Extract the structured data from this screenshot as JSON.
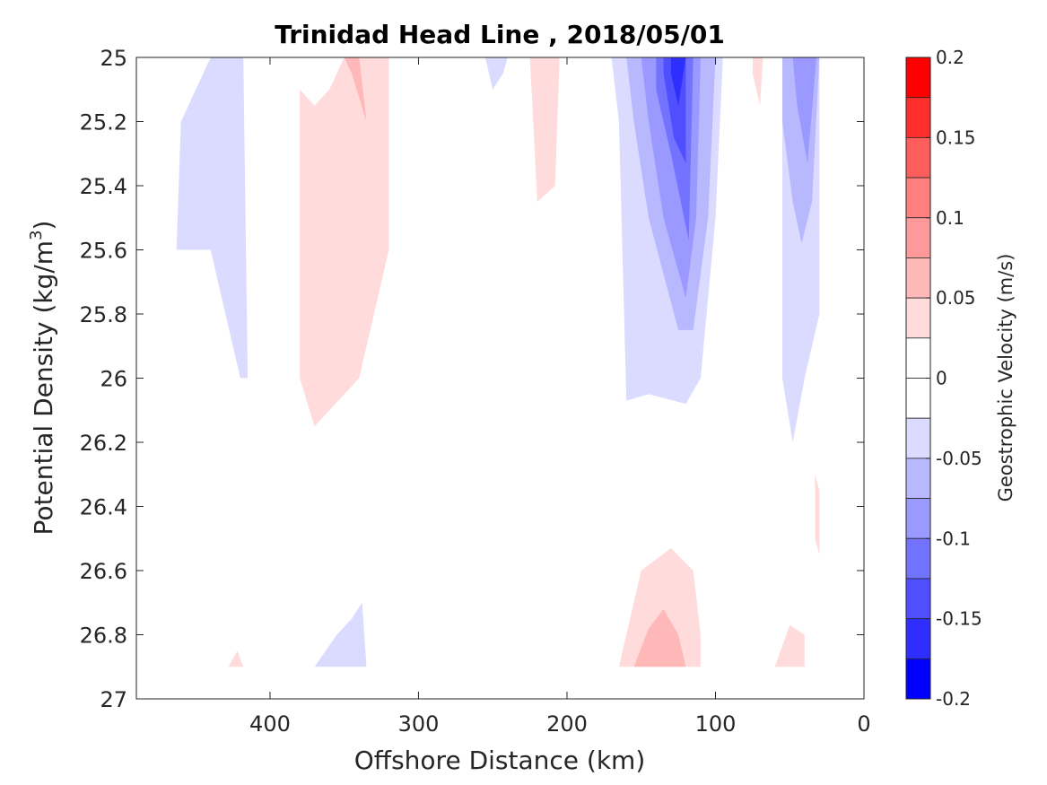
{
  "chart_data": {
    "type": "contour",
    "title": "Trinidad Head Line , 2018/05/01",
    "xlabel": "Offshore Distance (km)",
    "ylabel_main": "Potential Density (kg/m",
    "ylabel_sup": "3",
    "ylabel_close": ")",
    "xlim": [
      490,
      0
    ],
    "ylim": [
      25,
      27
    ],
    "xticks": [
      400,
      300,
      200,
      100,
      0
    ],
    "yticks": [
      25,
      25.2,
      25.4,
      25.6,
      25.8,
      26,
      26.2,
      26.4,
      26.6,
      26.8,
      27
    ],
    "grid": false,
    "colorbar": {
      "label": "Geostrophic Velocity (m/s)",
      "range": [
        -0.2,
        0.2
      ],
      "ticks": [
        0.2,
        0.15,
        0.1,
        0.05,
        0,
        -0.05,
        -0.1,
        -0.15,
        -0.2
      ],
      "levels": [
        {
          "from": 0.175,
          "to": 0.2,
          "color": "#ff0000"
        },
        {
          "from": 0.15,
          "to": 0.175,
          "color": "#ff2e2e"
        },
        {
          "from": 0.125,
          "to": 0.15,
          "color": "#ff5c5c"
        },
        {
          "from": 0.1,
          "to": 0.125,
          "color": "#ff7f7f"
        },
        {
          "from": 0.075,
          "to": 0.1,
          "color": "#ff9999"
        },
        {
          "from": 0.05,
          "to": 0.075,
          "color": "#ffb8b8"
        },
        {
          "from": 0.025,
          "to": 0.05,
          "color": "#ffdbdb"
        },
        {
          "from": 0.0,
          "to": 0.025,
          "color": "#ffffff"
        },
        {
          "from": -0.025,
          "to": 0.0,
          "color": "#ffffff"
        },
        {
          "from": -0.05,
          "to": -0.025,
          "color": "#dbdbff"
        },
        {
          "from": -0.075,
          "to": -0.05,
          "color": "#b8b8ff"
        },
        {
          "from": -0.1,
          "to": -0.075,
          "color": "#9999ff"
        },
        {
          "from": -0.125,
          "to": -0.1,
          "color": "#7373ff"
        },
        {
          "from": -0.15,
          "to": -0.125,
          "color": "#4f4fff"
        },
        {
          "from": -0.175,
          "to": -0.15,
          "color": "#2e2eff"
        },
        {
          "from": -0.2,
          "to": -0.175,
          "color": "#0000ff"
        }
      ]
    },
    "regions": [
      {
        "name": "neg-offshore-465km",
        "level": -0.05,
        "color": "#dbdbff",
        "points": [
          [
            440,
            25
          ],
          [
            460,
            25.2
          ],
          [
            463,
            25.6
          ],
          [
            455,
            25.6
          ],
          [
            440,
            25.6
          ],
          [
            430,
            25.8
          ],
          [
            420,
            26
          ],
          [
            415,
            26
          ],
          [
            418,
            25
          ],
          [
            440,
            25
          ]
        ]
      },
      {
        "name": "pos-380km",
        "level": 0.05,
        "color": "#ffdbdb",
        "points": [
          [
            380,
            25.1
          ],
          [
            370,
            25.15
          ],
          [
            360,
            25.1
          ],
          [
            350,
            25
          ],
          [
            320,
            25
          ],
          [
            320,
            25.6
          ],
          [
            340,
            26
          ],
          [
            370,
            26.15
          ],
          [
            380,
            26
          ],
          [
            380,
            25.1
          ]
        ]
      },
      {
        "name": "pos-350km-core",
        "level": 0.075,
        "color": "#ffb8b8",
        "points": [
          [
            350,
            25
          ],
          [
            340,
            25
          ],
          [
            335,
            25.2
          ],
          [
            345,
            25.05
          ],
          [
            350,
            25
          ]
        ]
      },
      {
        "name": "neg-245km",
        "level": -0.05,
        "color": "#dbdbff",
        "points": [
          [
            255,
            25
          ],
          [
            240,
            25
          ],
          [
            243,
            25.05
          ],
          [
            250,
            25.1
          ],
          [
            255,
            25
          ]
        ]
      },
      {
        "name": "pos-215km",
        "level": 0.05,
        "color": "#ffdbdb",
        "points": [
          [
            225,
            25
          ],
          [
            205,
            25
          ],
          [
            208,
            25.4
          ],
          [
            220,
            25.45
          ],
          [
            225,
            25
          ]
        ]
      },
      {
        "name": "neg-130km-l1",
        "level": -0.05,
        "color": "#dbdbff",
        "points": [
          [
            170,
            25
          ],
          [
            95,
            25
          ],
          [
            100,
            25.5
          ],
          [
            110,
            26
          ],
          [
            120,
            26.08
          ],
          [
            145,
            26.05
          ],
          [
            160,
            26.07
          ],
          [
            165,
            25.2
          ],
          [
            170,
            25
          ]
        ]
      },
      {
        "name": "neg-130km-l2",
        "level": -0.075,
        "color": "#b8b8ff",
        "points": [
          [
            160,
            25
          ],
          [
            100,
            25
          ],
          [
            105,
            25.5
          ],
          [
            115,
            25.85
          ],
          [
            125,
            25.85
          ],
          [
            145,
            25.5
          ],
          [
            155,
            25.2
          ],
          [
            160,
            25
          ]
        ]
      },
      {
        "name": "neg-130km-l3",
        "level": -0.1,
        "color": "#9999ff",
        "points": [
          [
            150,
            25
          ],
          [
            110,
            25
          ],
          [
            113,
            25.5
          ],
          [
            120,
            25.75
          ],
          [
            135,
            25.5
          ],
          [
            145,
            25.2
          ],
          [
            150,
            25
          ]
        ]
      },
      {
        "name": "neg-130km-l4",
        "level": -0.125,
        "color": "#7373ff",
        "points": [
          [
            140,
            25
          ],
          [
            115,
            25
          ],
          [
            118,
            25.57
          ],
          [
            130,
            25.3
          ],
          [
            140,
            25.1
          ],
          [
            140,
            25
          ]
        ]
      },
      {
        "name": "neg-130km-l5",
        "level": -0.15,
        "color": "#4f4fff",
        "points": [
          [
            135,
            25
          ],
          [
            120,
            25
          ],
          [
            120,
            25.33
          ],
          [
            128,
            25.25
          ],
          [
            135,
            25.05
          ],
          [
            135,
            25
          ]
        ]
      },
      {
        "name": "neg-130km-l6",
        "level": -0.175,
        "color": "#2e2eff",
        "points": [
          [
            130,
            25
          ],
          [
            120,
            25
          ],
          [
            125,
            25.15
          ],
          [
            130,
            25.05
          ],
          [
            130,
            25
          ]
        ]
      },
      {
        "name": "pos-75km",
        "level": 0.05,
        "color": "#ffdbdb",
        "points": [
          [
            75,
            25
          ],
          [
            68,
            25
          ],
          [
            70,
            25.15
          ],
          [
            75,
            25.05
          ],
          [
            75,
            25
          ]
        ]
      },
      {
        "name": "neg-50km-l1",
        "level": -0.05,
        "color": "#dbdbff",
        "points": [
          [
            55,
            25
          ],
          [
            30,
            25
          ],
          [
            30,
            25.8
          ],
          [
            40,
            26
          ],
          [
            48,
            26.2
          ],
          [
            55,
            26
          ],
          [
            55,
            25
          ]
        ]
      },
      {
        "name": "neg-50km-l2",
        "level": -0.075,
        "color": "#b8b8ff",
        "points": [
          [
            55,
            25
          ],
          [
            30,
            25
          ],
          [
            35,
            25.45
          ],
          [
            42,
            25.58
          ],
          [
            48,
            25.45
          ],
          [
            55,
            25.2
          ],
          [
            55,
            25
          ]
        ]
      },
      {
        "name": "neg-50km-l3",
        "level": -0.1,
        "color": "#9999ff",
        "points": [
          [
            48,
            25
          ],
          [
            32,
            25
          ],
          [
            38,
            25.33
          ],
          [
            45,
            25.15
          ],
          [
            48,
            25
          ]
        ]
      },
      {
        "name": "pos-30km-deep",
        "level": 0.05,
        "color": "#ffdbdb",
        "points": [
          [
            33,
            26.3
          ],
          [
            30,
            26.35
          ],
          [
            30,
            26.55
          ],
          [
            33,
            26.5
          ],
          [
            33,
            26.3
          ]
        ]
      },
      {
        "name": "neg-350km-deep",
        "level": -0.05,
        "color": "#dbdbff",
        "points": [
          [
            370,
            26.9
          ],
          [
            335,
            26.9
          ],
          [
            338,
            26.7
          ],
          [
            345,
            26.75
          ],
          [
            355,
            26.8
          ],
          [
            370,
            26.9
          ]
        ]
      },
      {
        "name": "pos-425km-deep",
        "level": 0.05,
        "color": "#ffdbdb",
        "points": [
          [
            428,
            26.9
          ],
          [
            418,
            26.9
          ],
          [
            422,
            26.85
          ],
          [
            428,
            26.9
          ]
        ]
      },
      {
        "name": "pos-130km-deep-l1",
        "level": 0.05,
        "color": "#ffdbdb",
        "points": [
          [
            165,
            26.9
          ],
          [
            110,
            26.9
          ],
          [
            110,
            26.8
          ],
          [
            115,
            26.6
          ],
          [
            130,
            26.53
          ],
          [
            150,
            26.6
          ],
          [
            165,
            26.9
          ]
        ]
      },
      {
        "name": "pos-130km-deep-l2",
        "level": 0.075,
        "color": "#ffb8b8",
        "points": [
          [
            155,
            26.9
          ],
          [
            120,
            26.9
          ],
          [
            125,
            26.8
          ],
          [
            135,
            26.72
          ],
          [
            145,
            26.78
          ],
          [
            155,
            26.9
          ]
        ]
      },
      {
        "name": "pos-50km-deep",
        "level": 0.05,
        "color": "#ffdbdb",
        "points": [
          [
            60,
            26.9
          ],
          [
            40,
            26.9
          ],
          [
            40,
            26.8
          ],
          [
            50,
            26.77
          ],
          [
            60,
            26.9
          ]
        ]
      }
    ]
  }
}
